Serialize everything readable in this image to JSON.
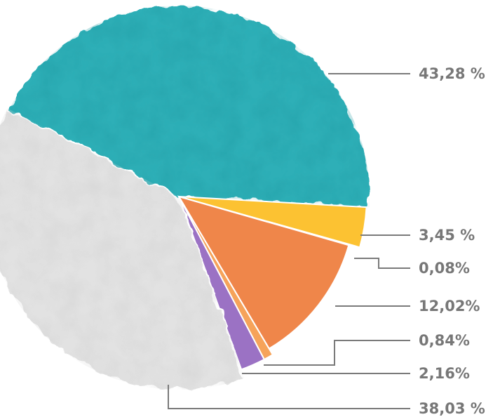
{
  "chart_data": {
    "type": "pie",
    "title": "",
    "series": [
      {
        "label": "43,28 %",
        "value": 43.28,
        "color": "#2eafb7"
      },
      {
        "label": "3,45 %",
        "value": 3.45,
        "color": "#fcc232"
      },
      {
        "label": "0,08%",
        "value": 0.08,
        "color": "#2e6b47"
      },
      {
        "label": "12,02%",
        "value": 12.02,
        "color": "#ef864a"
      },
      {
        "label": "0,84%",
        "value": 0.84,
        "color": "#f6a35a"
      },
      {
        "label": "2,16%",
        "value": 2.16,
        "color": "#9b72c4"
      },
      {
        "label": "38,03 %",
        "value": 38.03,
        "color": "#e2e2e2"
      }
    ],
    "legend": "none"
  }
}
